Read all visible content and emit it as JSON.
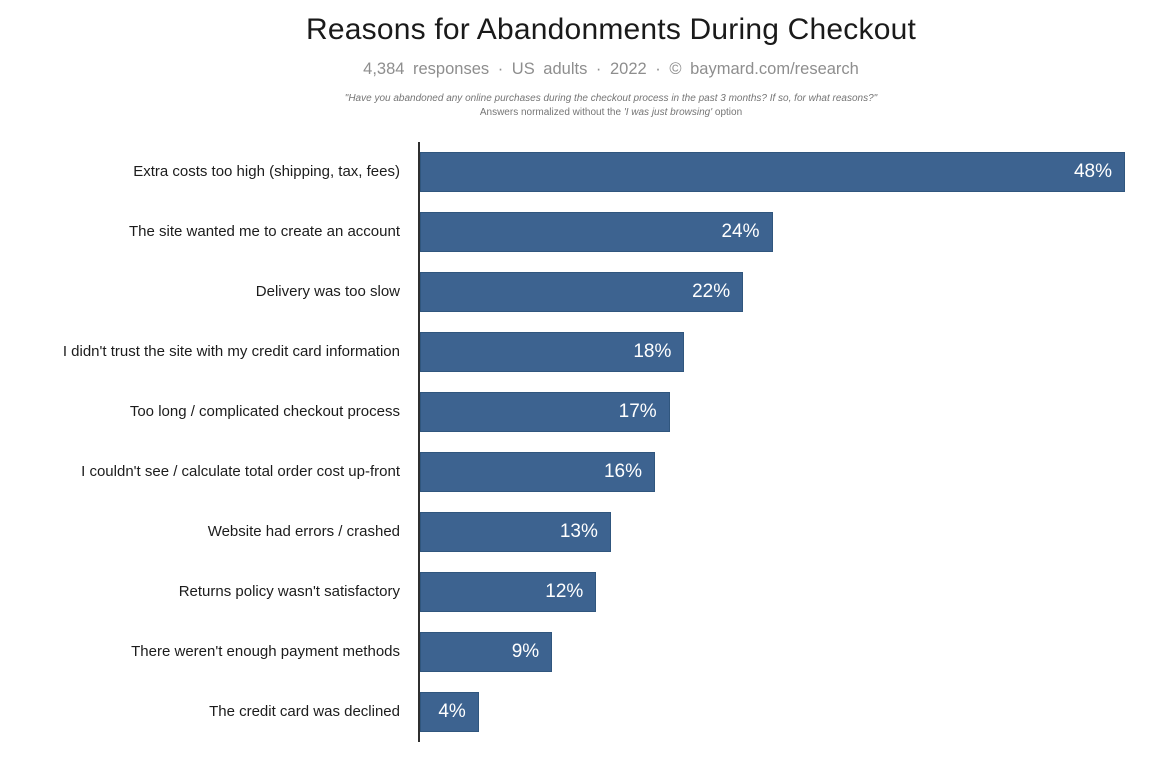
{
  "header": {
    "title": "Reasons for Abandonments During Checkout",
    "subtitle": "4,384 responses · US adults · 2022 · © baymard.com/research",
    "note_question": "\"Have you abandoned any online purchases during the checkout process in the past 3 months? If so, for what reasons?\"",
    "note_normalized_prefix": "Answers normalized without the ",
    "note_normalized_quote": "'I was just browsing'",
    "note_normalized_suffix": " option"
  },
  "chart_data": {
    "type": "bar",
    "orientation": "horizontal",
    "title": "Reasons for Abandonments During Checkout",
    "subtitle": "4,384 responses · US adults · 2022 · © baymard.com/research",
    "categories": [
      "Extra costs too high (shipping, tax, fees)",
      "The site wanted me to create an account",
      "Delivery was too slow",
      "I didn't trust the site with my credit card information",
      "Too long / complicated checkout process",
      "I couldn't see / calculate total order cost up-front",
      "Website had errors / crashed",
      "Returns policy wasn't satisfactory",
      "There weren't enough payment methods",
      "The credit card was declined"
    ],
    "values": [
      48,
      24,
      22,
      18,
      17,
      16,
      13,
      12,
      9,
      4
    ],
    "value_labels": [
      "48%",
      "24%",
      "22%",
      "18%",
      "17%",
      "16%",
      "13%",
      "12%",
      "9%",
      "4%"
    ],
    "xlabel": "",
    "ylabel": "",
    "xlim": [
      0,
      48
    ],
    "grid": false,
    "legend": "none",
    "value_labels_position": "inside-end",
    "bar_color": "#3d6390",
    "value_label_color": "#ffffff",
    "axis_color": "#2f2f2f"
  }
}
